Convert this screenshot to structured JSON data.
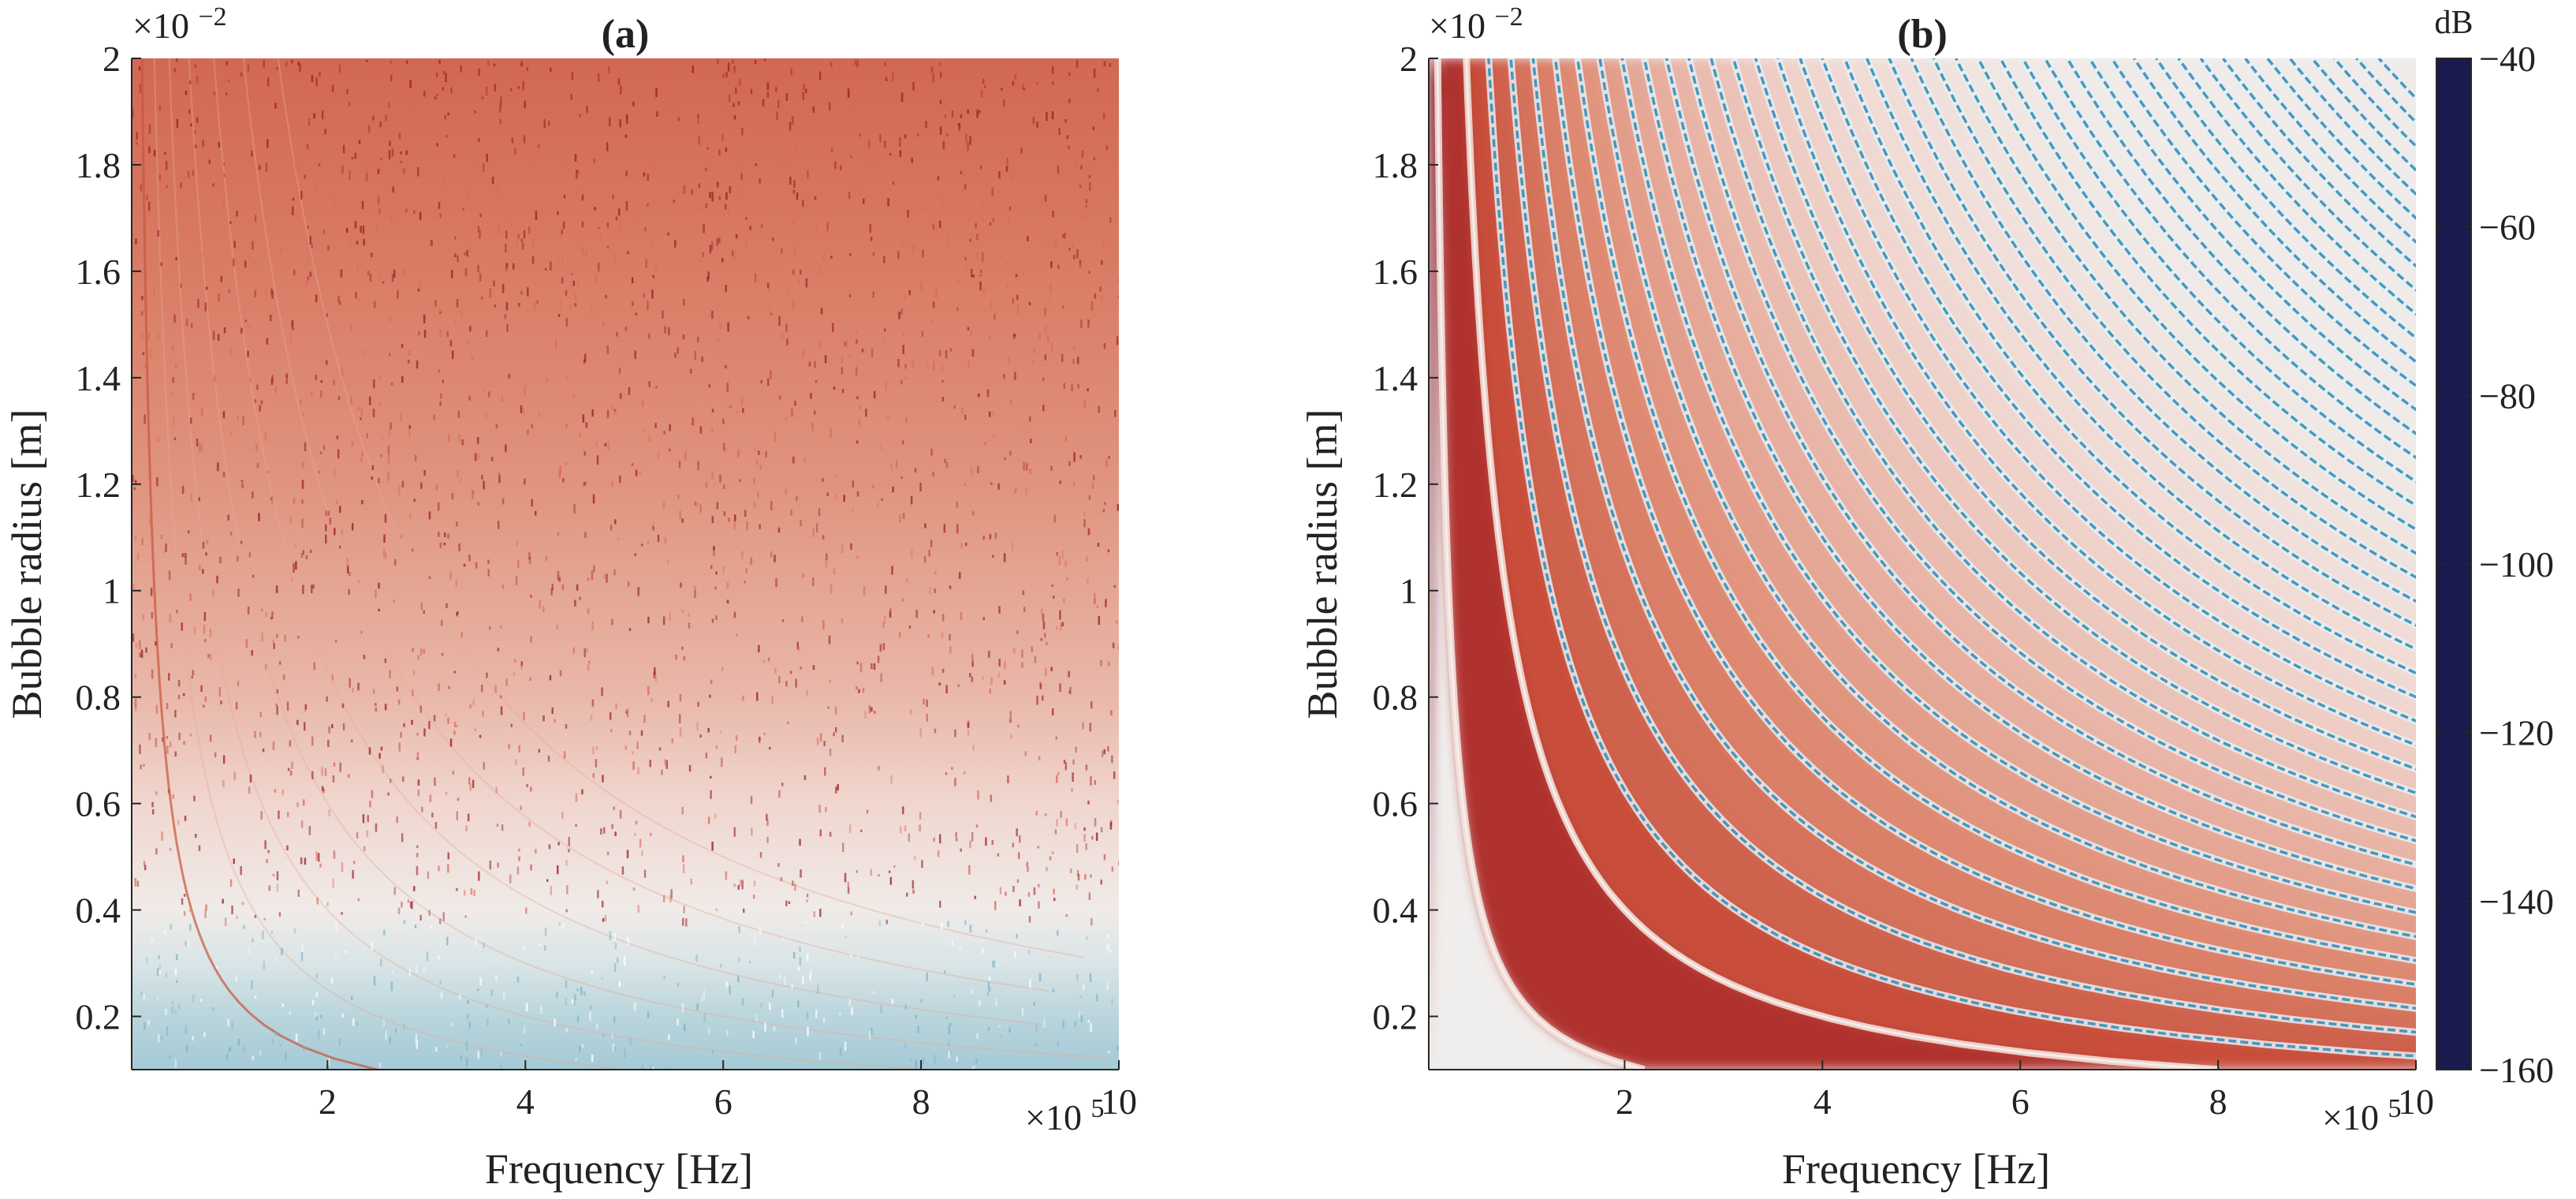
{
  "chart_data": [
    {
      "type": "heatmap",
      "title": "(a)",
      "xlabel": "Frequency [Hz]",
      "ylabel": "Bubble radius [m]",
      "x_exponent_base": "×10",
      "x_exponent_power": "5",
      "y_exponent_base": "×10",
      "y_exponent_power": "−2",
      "xlim": [
        0.02,
        10
      ],
      "ylim": [
        0.1,
        2
      ],
      "x_ticks": [
        2,
        4,
        6,
        8,
        10
      ],
      "y_ticks": [
        0.2,
        0.4,
        0.6,
        0.8,
        1,
        1.2,
        1.4,
        1.6,
        1.8,
        2
      ],
      "x_tick_labels": [
        "2",
        "4",
        "6",
        "8",
        "10"
      ],
      "y_tick_labels": [
        "0.2",
        "0.4",
        "0.6",
        "0.8",
        "1",
        "1.2",
        "1.4",
        "1.6",
        "1.8",
        "2"
      ],
      "z_description": "level (dB): about -68 near radius 2e-2 m rising toward -112 near radius 0.1e-2 m; speckled",
      "z_by_radius": [
        {
          "radius": 2.0,
          "db": -68
        },
        {
          "radius": 1.6,
          "db": -72
        },
        {
          "radius": 1.2,
          "db": -77
        },
        {
          "radius": 0.8,
          "db": -84
        },
        {
          "radius": 0.6,
          "db": -90
        },
        {
          "radius": 0.4,
          "db": -98
        },
        {
          "radius": 0.3,
          "db": -104
        },
        {
          "radius": 0.2,
          "db": -110
        },
        {
          "radius": 0.1,
          "db": -113
        }
      ],
      "grid": false
    },
    {
      "type": "heatmap",
      "title": "(b)",
      "xlabel": "Frequency [Hz]",
      "ylabel": "Bubble radius [m]",
      "x_exponent_base": "×10",
      "x_exponent_power": "5",
      "y_exponent_base": "×10",
      "y_exponent_power": "−2",
      "xlim": [
        0.02,
        10
      ],
      "ylim": [
        0.1,
        2
      ],
      "x_ticks": [
        2,
        4,
        6,
        8,
        10
      ],
      "y_ticks": [
        0.2,
        0.4,
        0.6,
        0.8,
        1,
        1.2,
        1.4,
        1.6,
        1.8,
        2
      ],
      "x_tick_labels": [
        "2",
        "4",
        "6",
        "8",
        "10"
      ],
      "y_tick_labels": [
        "0.2",
        "0.4",
        "0.6",
        "0.8",
        "1",
        "1.2",
        "1.4",
        "1.6",
        "1.8",
        "2"
      ],
      "z_description": "level (dB): about -45 at low frequency, decaying with frequency × radius, with null curves where frequency × radius is constant",
      "resonance_products": [
        0.22,
        0.8,
        1.25,
        1.7,
        2.15,
        2.6,
        3.05,
        3.5,
        3.95,
        4.4,
        4.85,
        5.3,
        5.75,
        6.2,
        6.65,
        7.1,
        7.55,
        8.0,
        8.45,
        8.9,
        9.35,
        9.8,
        10.25,
        10.7,
        11.15,
        11.6,
        12.05,
        12.5,
        12.95,
        13.4,
        13.85,
        14.3,
        14.75,
        15.2,
        15.65,
        16.1,
        16.55,
        17.0,
        17.45,
        17.9,
        18.35,
        18.8,
        19.25
      ],
      "grid": false
    }
  ],
  "colorbar": {
    "unit": "dB",
    "ticks": [
      -40,
      -60,
      -80,
      -100,
      -120,
      -140,
      -160
    ],
    "tick_labels": [
      "−40",
      "−60",
      "−80",
      "−100",
      "−120",
      "−140",
      "−160"
    ],
    "range": [
      -160,
      -40
    ],
    "colors": [
      {
        "db": -40,
        "color": "#3b0f1d"
      },
      {
        "db": -50,
        "color": "#8e1428"
      },
      {
        "db": -60,
        "color": "#c44230"
      },
      {
        "db": -75,
        "color": "#de8a72"
      },
      {
        "db": -90,
        "color": "#f0d6cf"
      },
      {
        "db": -100,
        "color": "#f0f0ee"
      },
      {
        "db": -112,
        "color": "#afcfd8"
      },
      {
        "db": -122,
        "color": "#4b9dc1"
      },
      {
        "db": -140,
        "color": "#1f55b3"
      },
      {
        "db": -160,
        "color": "#1a1a4e"
      }
    ]
  }
}
